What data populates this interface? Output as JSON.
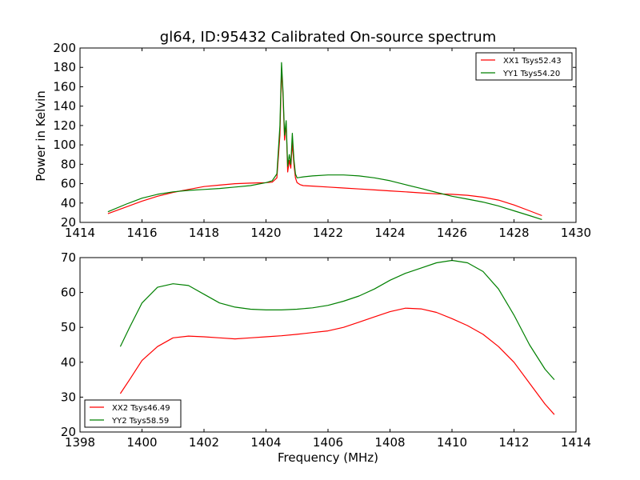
{
  "chart_data": [
    {
      "type": "line",
      "title": "gl64, ID:95432 Calibrated On-source spectrum",
      "xlabel": "",
      "ylabel": "Power in Kelvin",
      "xlim": [
        1414,
        1430
      ],
      "ylim": [
        20,
        200
      ],
      "xticks": [
        1414,
        1416,
        1418,
        1420,
        1422,
        1424,
        1426,
        1428,
        1430
      ],
      "yticks": [
        20,
        40,
        60,
        80,
        100,
        120,
        140,
        160,
        180,
        200
      ],
      "legend_position": "top-right",
      "series": [
        {
          "name": "XX1 Tsys52.43",
          "color": "#ff0000",
          "x": [
            1414.9,
            1415.5,
            1416.0,
            1416.5,
            1417.0,
            1417.5,
            1418.0,
            1418.5,
            1419.0,
            1419.5,
            1420.0,
            1420.2,
            1420.35,
            1420.45,
            1420.5,
            1420.55,
            1420.6,
            1420.65,
            1420.7,
            1420.75,
            1420.8,
            1420.85,
            1420.9,
            1420.95,
            1421.0,
            1421.1,
            1421.2,
            1421.5,
            1422.0,
            1422.5,
            1423.0,
            1423.5,
            1424.0,
            1424.5,
            1425.0,
            1425.5,
            1426.0,
            1426.5,
            1427.0,
            1427.5,
            1428.0,
            1428.5,
            1428.9
          ],
          "y": [
            29,
            36,
            42,
            47,
            51,
            54,
            57,
            58.5,
            60,
            60.5,
            61,
            61.5,
            66,
            110,
            178,
            150,
            105,
            122,
            72,
            84,
            76,
            102,
            80,
            66,
            61,
            59,
            58,
            57.5,
            56.5,
            55.5,
            54.5,
            53.5,
            52.5,
            51.5,
            50.5,
            49.5,
            49,
            48,
            46,
            43,
            38,
            32,
            27
          ]
        },
        {
          "name": "YY1 Tsys54.20",
          "color": "#008000",
          "x": [
            1414.9,
            1415.5,
            1416.0,
            1416.5,
            1417.0,
            1417.5,
            1418.0,
            1418.5,
            1419.0,
            1419.5,
            1420.0,
            1420.2,
            1420.35,
            1420.45,
            1420.5,
            1420.55,
            1420.6,
            1420.65,
            1420.7,
            1420.75,
            1420.8,
            1420.85,
            1420.9,
            1420.95,
            1421.0,
            1421.1,
            1421.2,
            1421.5,
            1422.0,
            1422.5,
            1423.0,
            1423.5,
            1424.0,
            1424.5,
            1425.0,
            1425.5,
            1426.0,
            1426.5,
            1427.0,
            1427.5,
            1428.0,
            1428.5,
            1428.9
          ],
          "y": [
            31,
            39,
            45,
            49,
            51.5,
            53,
            54,
            55,
            56.5,
            58,
            61,
            63,
            70,
            120,
            185,
            155,
            110,
            125,
            78,
            90,
            80,
            112,
            85,
            70,
            66,
            66.5,
            67,
            68,
            69,
            69,
            68,
            66,
            63,
            59,
            55,
            51,
            47,
            44,
            41,
            37,
            32,
            27,
            23
          ]
        }
      ]
    },
    {
      "type": "line",
      "title": "",
      "xlabel": "Frequency (MHz)",
      "ylabel": "",
      "xlim": [
        1398,
        1414
      ],
      "ylim": [
        20,
        70
      ],
      "xticks": [
        1398,
        1400,
        1402,
        1404,
        1406,
        1408,
        1410,
        1412,
        1414
      ],
      "yticks": [
        20,
        30,
        40,
        50,
        60,
        70
      ],
      "legend_position": "bottom-left",
      "series": [
        {
          "name": "XX2 Tsys46.49",
          "color": "#ff0000",
          "x": [
            1399.3,
            1399.6,
            1400.0,
            1400.5,
            1401.0,
            1401.5,
            1402.0,
            1402.5,
            1403.0,
            1403.5,
            1404.0,
            1404.5,
            1405.0,
            1405.5,
            1406.0,
            1406.5,
            1407.0,
            1407.5,
            1408.0,
            1408.5,
            1409.0,
            1409.5,
            1410.0,
            1410.5,
            1411.0,
            1411.5,
            1412.0,
            1412.5,
            1413.0,
            1413.3
          ],
          "y": [
            31,
            35,
            40.5,
            44.5,
            47,
            47.5,
            47.3,
            47,
            46.7,
            47,
            47.3,
            47.6,
            48,
            48.5,
            49,
            50,
            51.5,
            53,
            54.5,
            55.5,
            55.3,
            54.3,
            52.5,
            50.5,
            48,
            44.5,
            40,
            34,
            28,
            25
          ]
        },
        {
          "name": "YY2 Tsys58.59",
          "color": "#008000",
          "x": [
            1399.3,
            1399.6,
            1400.0,
            1400.5,
            1401.0,
            1401.5,
            1402.0,
            1402.5,
            1403.0,
            1403.5,
            1404.0,
            1404.5,
            1405.0,
            1405.5,
            1406.0,
            1406.5,
            1407.0,
            1407.5,
            1408.0,
            1408.5,
            1409.0,
            1409.5,
            1410.0,
            1410.5,
            1411.0,
            1411.5,
            1412.0,
            1412.5,
            1413.0,
            1413.3
          ],
          "y": [
            44.5,
            50,
            57,
            61.5,
            62.5,
            62,
            59.5,
            57,
            55.8,
            55.2,
            55,
            55,
            55.2,
            55.6,
            56.3,
            57.5,
            59,
            61,
            63.5,
            65.5,
            67,
            68.5,
            69.2,
            68.5,
            66,
            61,
            53.5,
            45,
            38,
            35
          ]
        }
      ]
    }
  ]
}
